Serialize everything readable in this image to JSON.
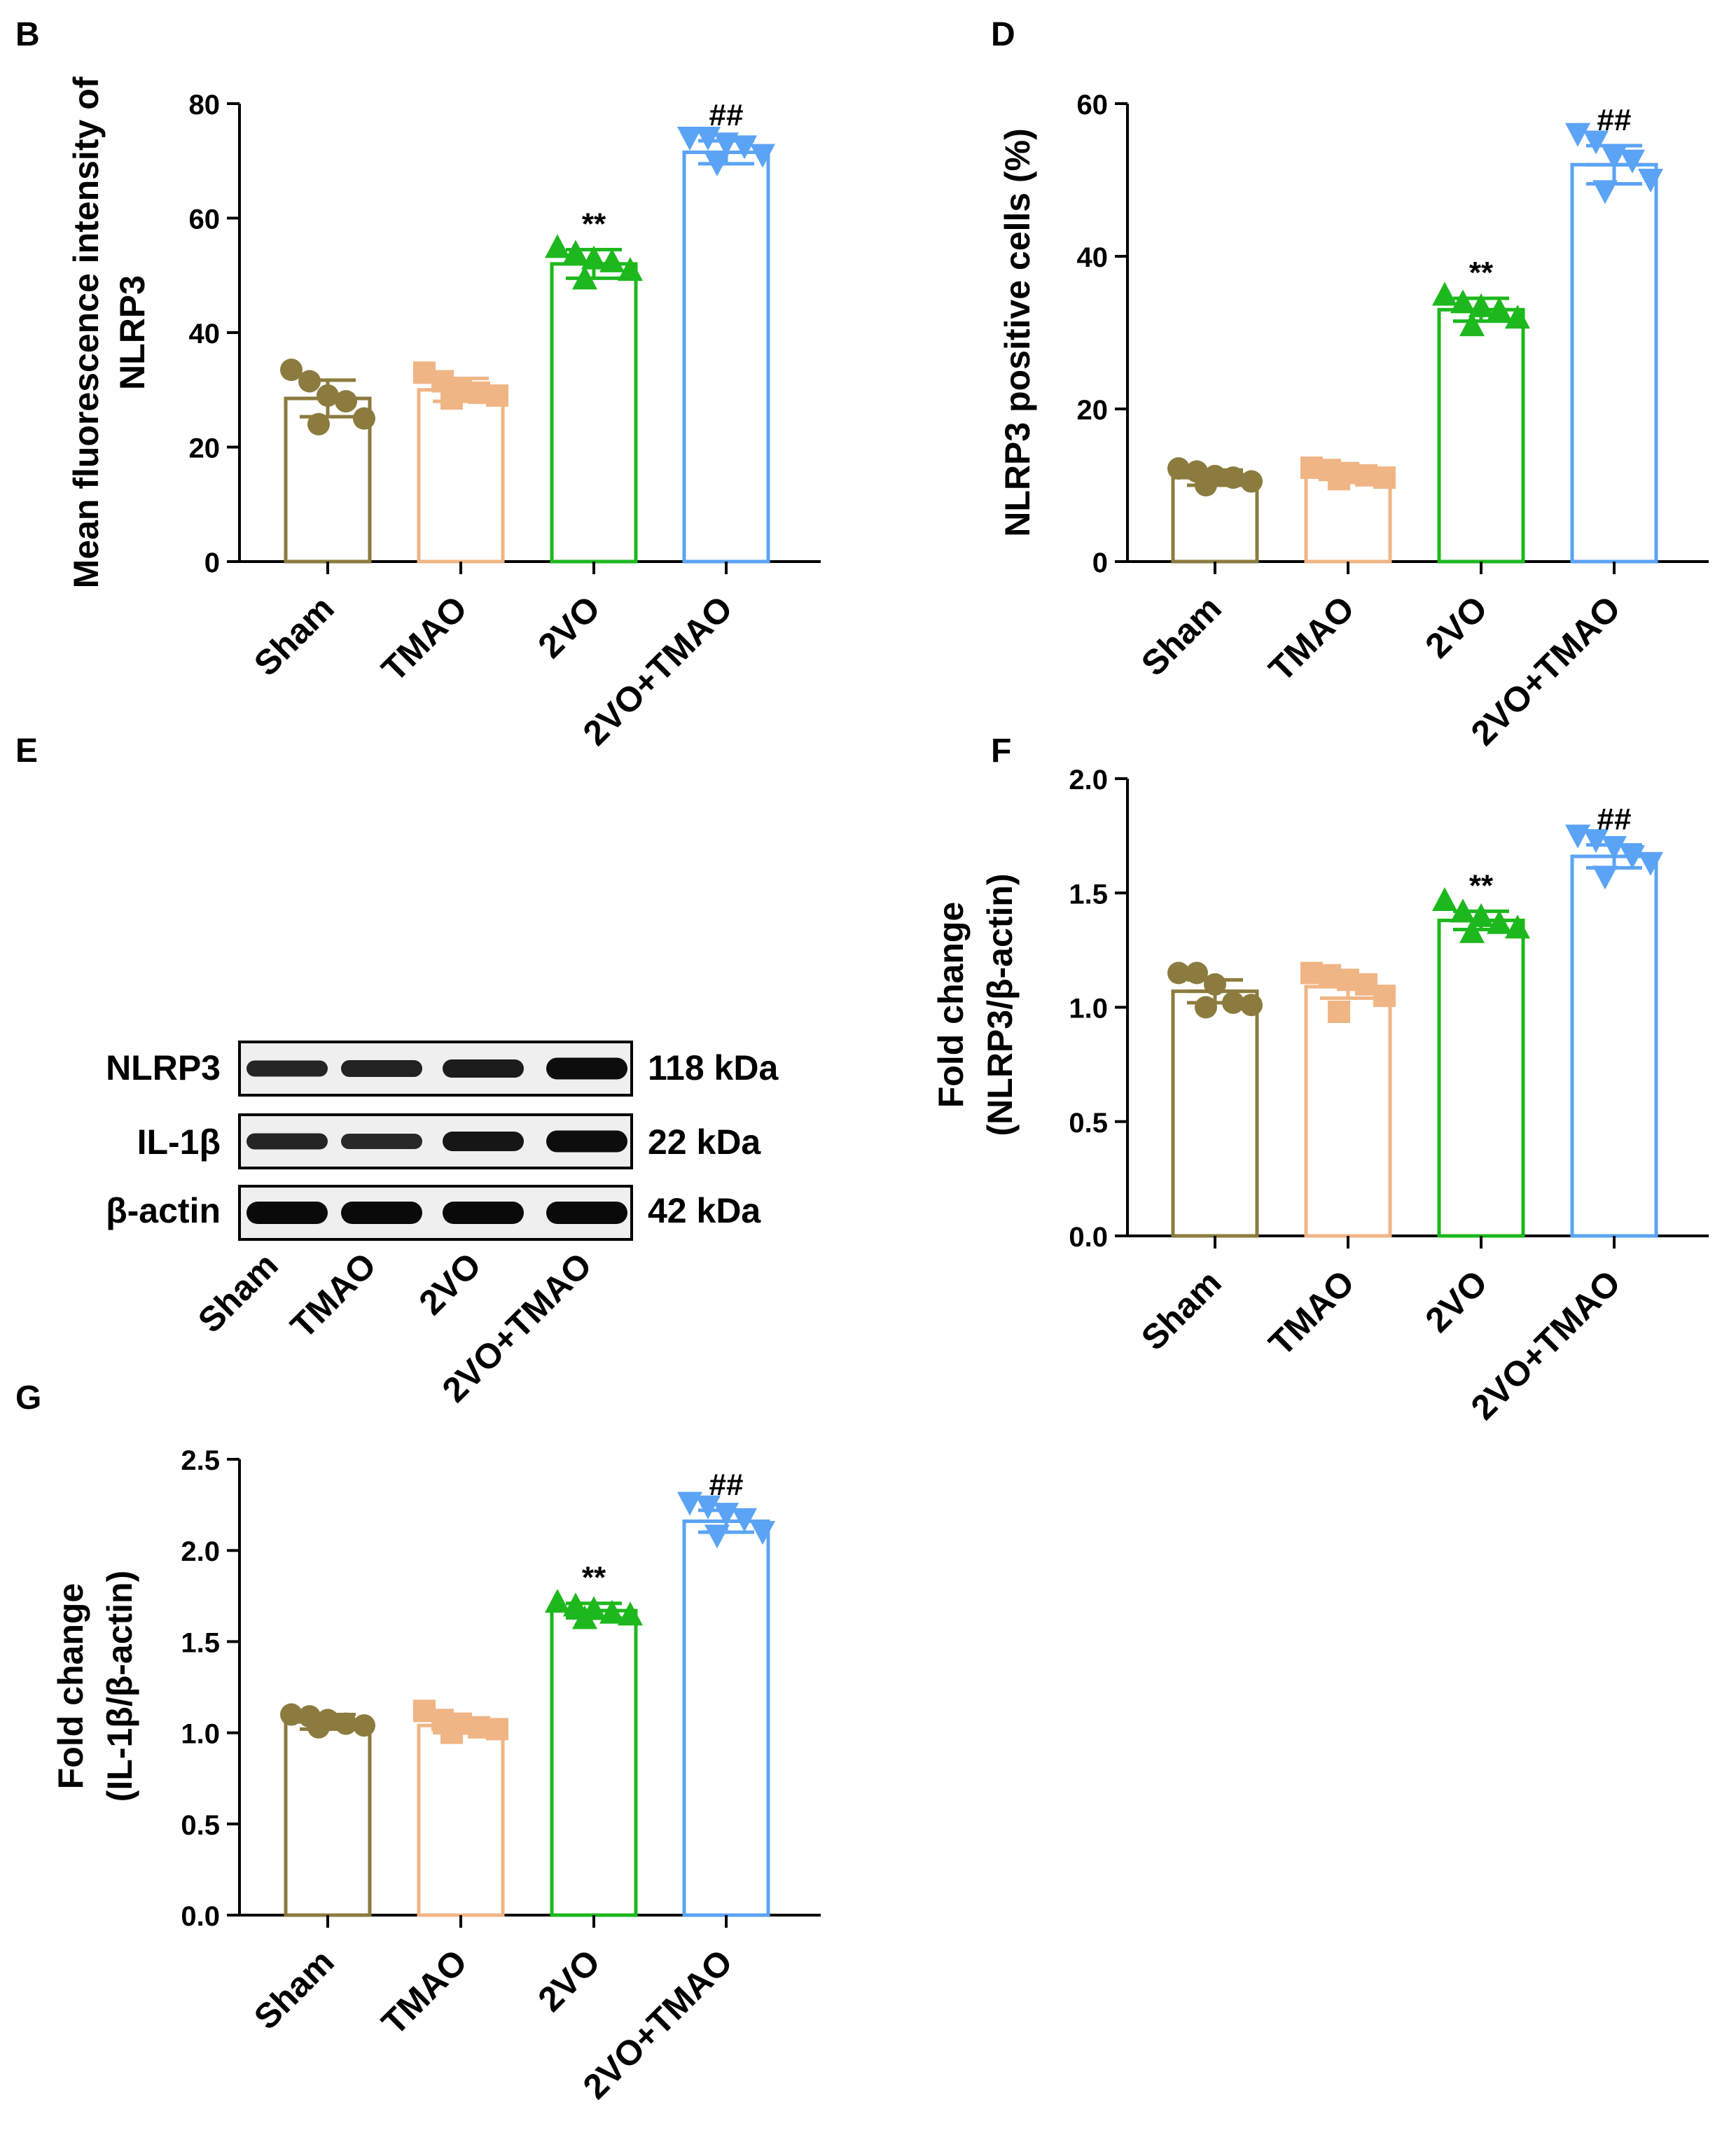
{
  "group_colors": {
    "Sham": "#8B7B3E",
    "TMAO": "#F0B585",
    "2VO": "#1DB81D",
    "2VO+TMAO": "#5BA3F5"
  },
  "marker_shapes": [
    "circle",
    "square",
    "triangle-up",
    "triangle-down"
  ],
  "western_blot": {
    "panel_label": "E",
    "rows": [
      {
        "protein": "NLRP3",
        "kda": "118 kDa",
        "band_intensity": [
          0.55,
          0.6,
          0.7,
          0.95
        ]
      },
      {
        "protein": "IL-1β",
        "kda": "22 kDa",
        "band_intensity": [
          0.55,
          0.5,
          0.8,
          0.95
        ]
      },
      {
        "protein": "β-actin",
        "kda": "42 kDa",
        "band_intensity": [
          1.0,
          1.0,
          1.0,
          1.0
        ]
      }
    ],
    "lanes": [
      "Sham",
      "TMAO",
      "2VO",
      "2VO+TMAO"
    ]
  },
  "chart_data": [
    {
      "panel": "B",
      "type": "bar",
      "categories": [
        "Sham",
        "TMAO",
        "2VO",
        "2VO+TMAO"
      ],
      "values": [
        28.5,
        30,
        52,
        71.5
      ],
      "errors": [
        3.2,
        2.0,
        2.5,
        2.0
      ],
      "points": [
        [
          33.5,
          31.5,
          29,
          28,
          25,
          24
        ],
        [
          33,
          31.5,
          30,
          29.5,
          29,
          28.5
        ],
        [
          55,
          54,
          53,
          52.5,
          51,
          49.5
        ],
        [
          74,
          74,
          73,
          72.5,
          71,
          69.5
        ]
      ],
      "ylabel_lines": [
        "Mean fluorescence intensity of",
        "NLRP3"
      ],
      "ylim": [
        0,
        80
      ],
      "yticks": [
        0,
        20,
        40,
        60,
        80
      ],
      "annotations": [
        "",
        "",
        "**",
        "##"
      ]
    },
    {
      "panel": "D",
      "type": "bar",
      "categories": [
        "Sham",
        "TMAO",
        "2VO",
        "2VO+TMAO"
      ],
      "values": [
        11,
        11.5,
        33,
        52
      ],
      "errors": [
        1.0,
        0.6,
        1.5,
        2.5
      ],
      "points": [
        [
          12.2,
          11.8,
          11.2,
          11,
          10.5,
          10
        ],
        [
          12.3,
          12,
          11.6,
          11.3,
          11,
          10.8
        ],
        [
          35,
          34,
          33.5,
          33,
          32,
          31
        ],
        [
          56,
          55,
          53,
          52.5,
          50,
          48.5
        ]
      ],
      "ylabel_lines": [
        "NLRP3 positive cells (%)"
      ],
      "ylim": [
        0,
        60
      ],
      "yticks": [
        0,
        20,
        40,
        60
      ],
      "annotations": [
        "",
        "",
        "**",
        "##"
      ]
    },
    {
      "panel": "F",
      "type": "bar",
      "categories": [
        "Sham",
        "TMAO",
        "2VO",
        "2VO+TMAO"
      ],
      "values": [
        1.07,
        1.09,
        1.38,
        1.66
      ],
      "errors": [
        0.05,
        0.05,
        0.04,
        0.05
      ],
      "points": [
        [
          1.15,
          1.15,
          1.1,
          1.02,
          1.01,
          1.0
        ],
        [
          1.15,
          1.14,
          1.12,
          1.1,
          1.05,
          0.98
        ],
        [
          1.47,
          1.42,
          1.4,
          1.37,
          1.35,
          1.33
        ],
        [
          1.75,
          1.73,
          1.7,
          1.66,
          1.63,
          1.57
        ]
      ],
      "ylabel_lines": [
        "Fold change",
        "(NLRP3/β-actin)"
      ],
      "ylim": [
        0,
        2.0
      ],
      "yticks": [
        "0.0",
        "0.5",
        "1.0",
        "1.5",
        "2.0"
      ],
      "annotations": [
        "",
        "",
        "**",
        "##"
      ]
    },
    {
      "panel": "G",
      "type": "bar",
      "categories": [
        "Sham",
        "TMAO",
        "2VO",
        "2VO+TMAO"
      ],
      "values": [
        1.06,
        1.04,
        1.67,
        2.16
      ],
      "errors": [
        0.04,
        0.04,
        0.04,
        0.06
      ],
      "points": [
        [
          1.1,
          1.09,
          1.07,
          1.05,
          1.04,
          1.03
        ],
        [
          1.12,
          1.07,
          1.05,
          1.03,
          1.02,
          1.0
        ],
        [
          1.72,
          1.7,
          1.68,
          1.66,
          1.65,
          1.63
        ],
        [
          2.26,
          2.24,
          2.2,
          2.17,
          2.1,
          2.08
        ]
      ],
      "ylabel_lines": [
        "Fold change",
        "(IL-1β/β-actin)"
      ],
      "ylim": [
        0,
        2.5
      ],
      "yticks": [
        "0.0",
        "0.5",
        "1.0",
        "1.5",
        "2.0",
        "2.5"
      ],
      "annotations": [
        "",
        "",
        "**",
        "##"
      ]
    }
  ]
}
